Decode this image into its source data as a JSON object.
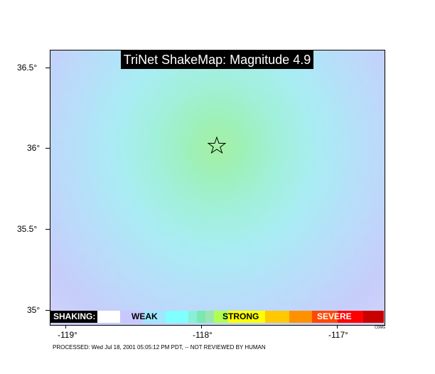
{
  "map": {
    "title": "TriNet ShakeMap: Magnitude 4.9",
    "lat_labels": [
      "36.5°",
      "36°",
      "35.5°",
      "35°"
    ],
    "lon_labels": [
      "-119°",
      "-118°",
      "-117°"
    ],
    "epicenter_icon": "star-icon"
  },
  "legend": {
    "shaking_label": "SHAKING:",
    "weak_label": "WEAK",
    "strong_label": "STRONG",
    "severe_label": "SEVERE",
    "colors": [
      "#ffffff",
      "#c8c8ff",
      "#a0e6ff",
      "#80ffff",
      "#7aff93",
      "#b0ff50",
      "#ffff00",
      "#ffc800",
      "#ff9100",
      "#ff4800",
      "#ff0000",
      "#c80000"
    ]
  },
  "footer": {
    "processed_text": "PROCESSED: Wed Jul 18, 2001 05:05:12 PM PDT, -- NOT REVIEWED BY HUMAN",
    "credit": "CDMG"
  },
  "colors": {
    "background_intensity": "#c8ccfa",
    "mid_intensity": "#a6f0ee",
    "high_intensity": "#a0f0a8"
  }
}
